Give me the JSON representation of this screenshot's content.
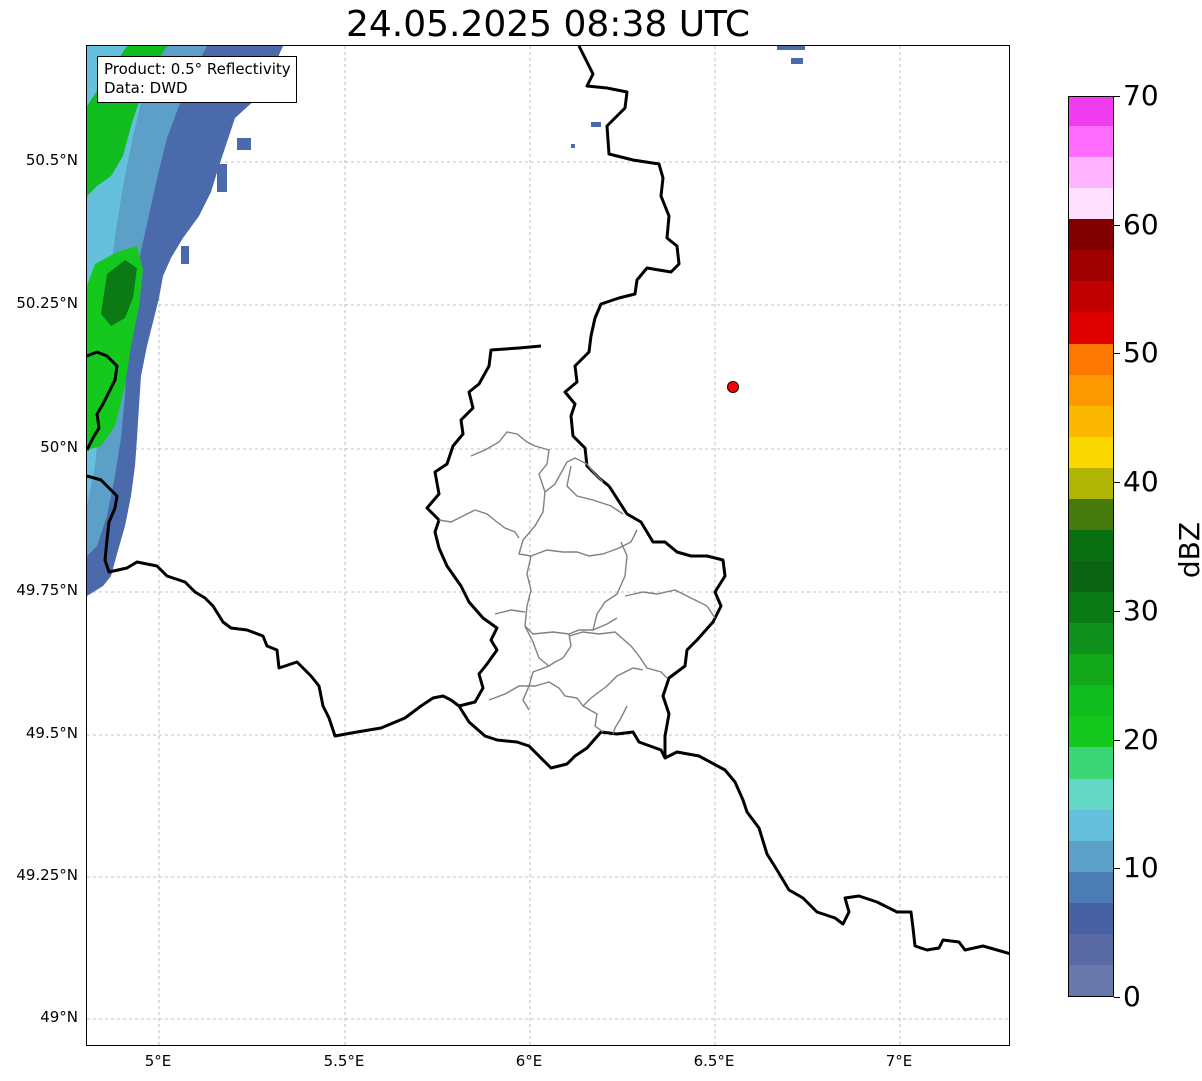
{
  "title": "24.05.2025 08:38 UTC",
  "info": {
    "product": "Product: 0.5° Reflectivity",
    "source": "Data: DWD"
  },
  "map": {
    "lon_range": [
      4.8,
      7.3
    ],
    "lat_range": [
      48.95,
      50.7
    ],
    "lat_ticks": [
      {
        "value": 50.5,
        "label": "50.5°N"
      },
      {
        "value": 50.25,
        "label": "50.25°N"
      },
      {
        "value": 50.0,
        "label": "50°N"
      },
      {
        "value": 49.75,
        "label": "49.75°N"
      },
      {
        "value": 49.5,
        "label": "49.5°N"
      },
      {
        "value": 49.25,
        "label": "49.25°N"
      },
      {
        "value": 49.0,
        "label": "49°N"
      }
    ],
    "lon_ticks": [
      {
        "value": 5.0,
        "label": "5°E"
      },
      {
        "value": 5.5,
        "label": "5.5°E"
      },
      {
        "value": 6.0,
        "label": "6°E"
      },
      {
        "value": 6.5,
        "label": "6.5°E"
      },
      {
        "value": 7.0,
        "label": "7°E"
      }
    ],
    "marker": {
      "lon": 6.55,
      "lat": 50.11,
      "color": "#ff0000"
    },
    "gridlines": true
  },
  "colorbar": {
    "label": "dBZ",
    "min": 0,
    "max": 70,
    "tick_values": [
      0,
      10,
      20,
      30,
      40,
      50,
      60,
      70
    ],
    "tick_labels": [
      "0",
      "10",
      "20",
      "30",
      "40",
      "50",
      "60",
      "70"
    ],
    "colors": [
      "#6878aa",
      "#5a6aa2",
      "#4860a4",
      "#4c7cb4",
      "#5ca0c8",
      "#64c0dc",
      "#64d8c4",
      "#3cd676",
      "#14c81e",
      "#10bc1e",
      "#12a81a",
      "#10901c",
      "#0c7a14",
      "#0a6414",
      "#087010",
      "#467a0c",
      "#b0b404",
      "#fcd800",
      "#fcb800",
      "#fc9800",
      "#fc7800",
      "#e00000",
      "#c00000",
      "#a00000",
      "#800000",
      "#ffe0ff",
      "#ffb4ff",
      "#ff6cff",
      "#ee3cee"
    ]
  }
}
